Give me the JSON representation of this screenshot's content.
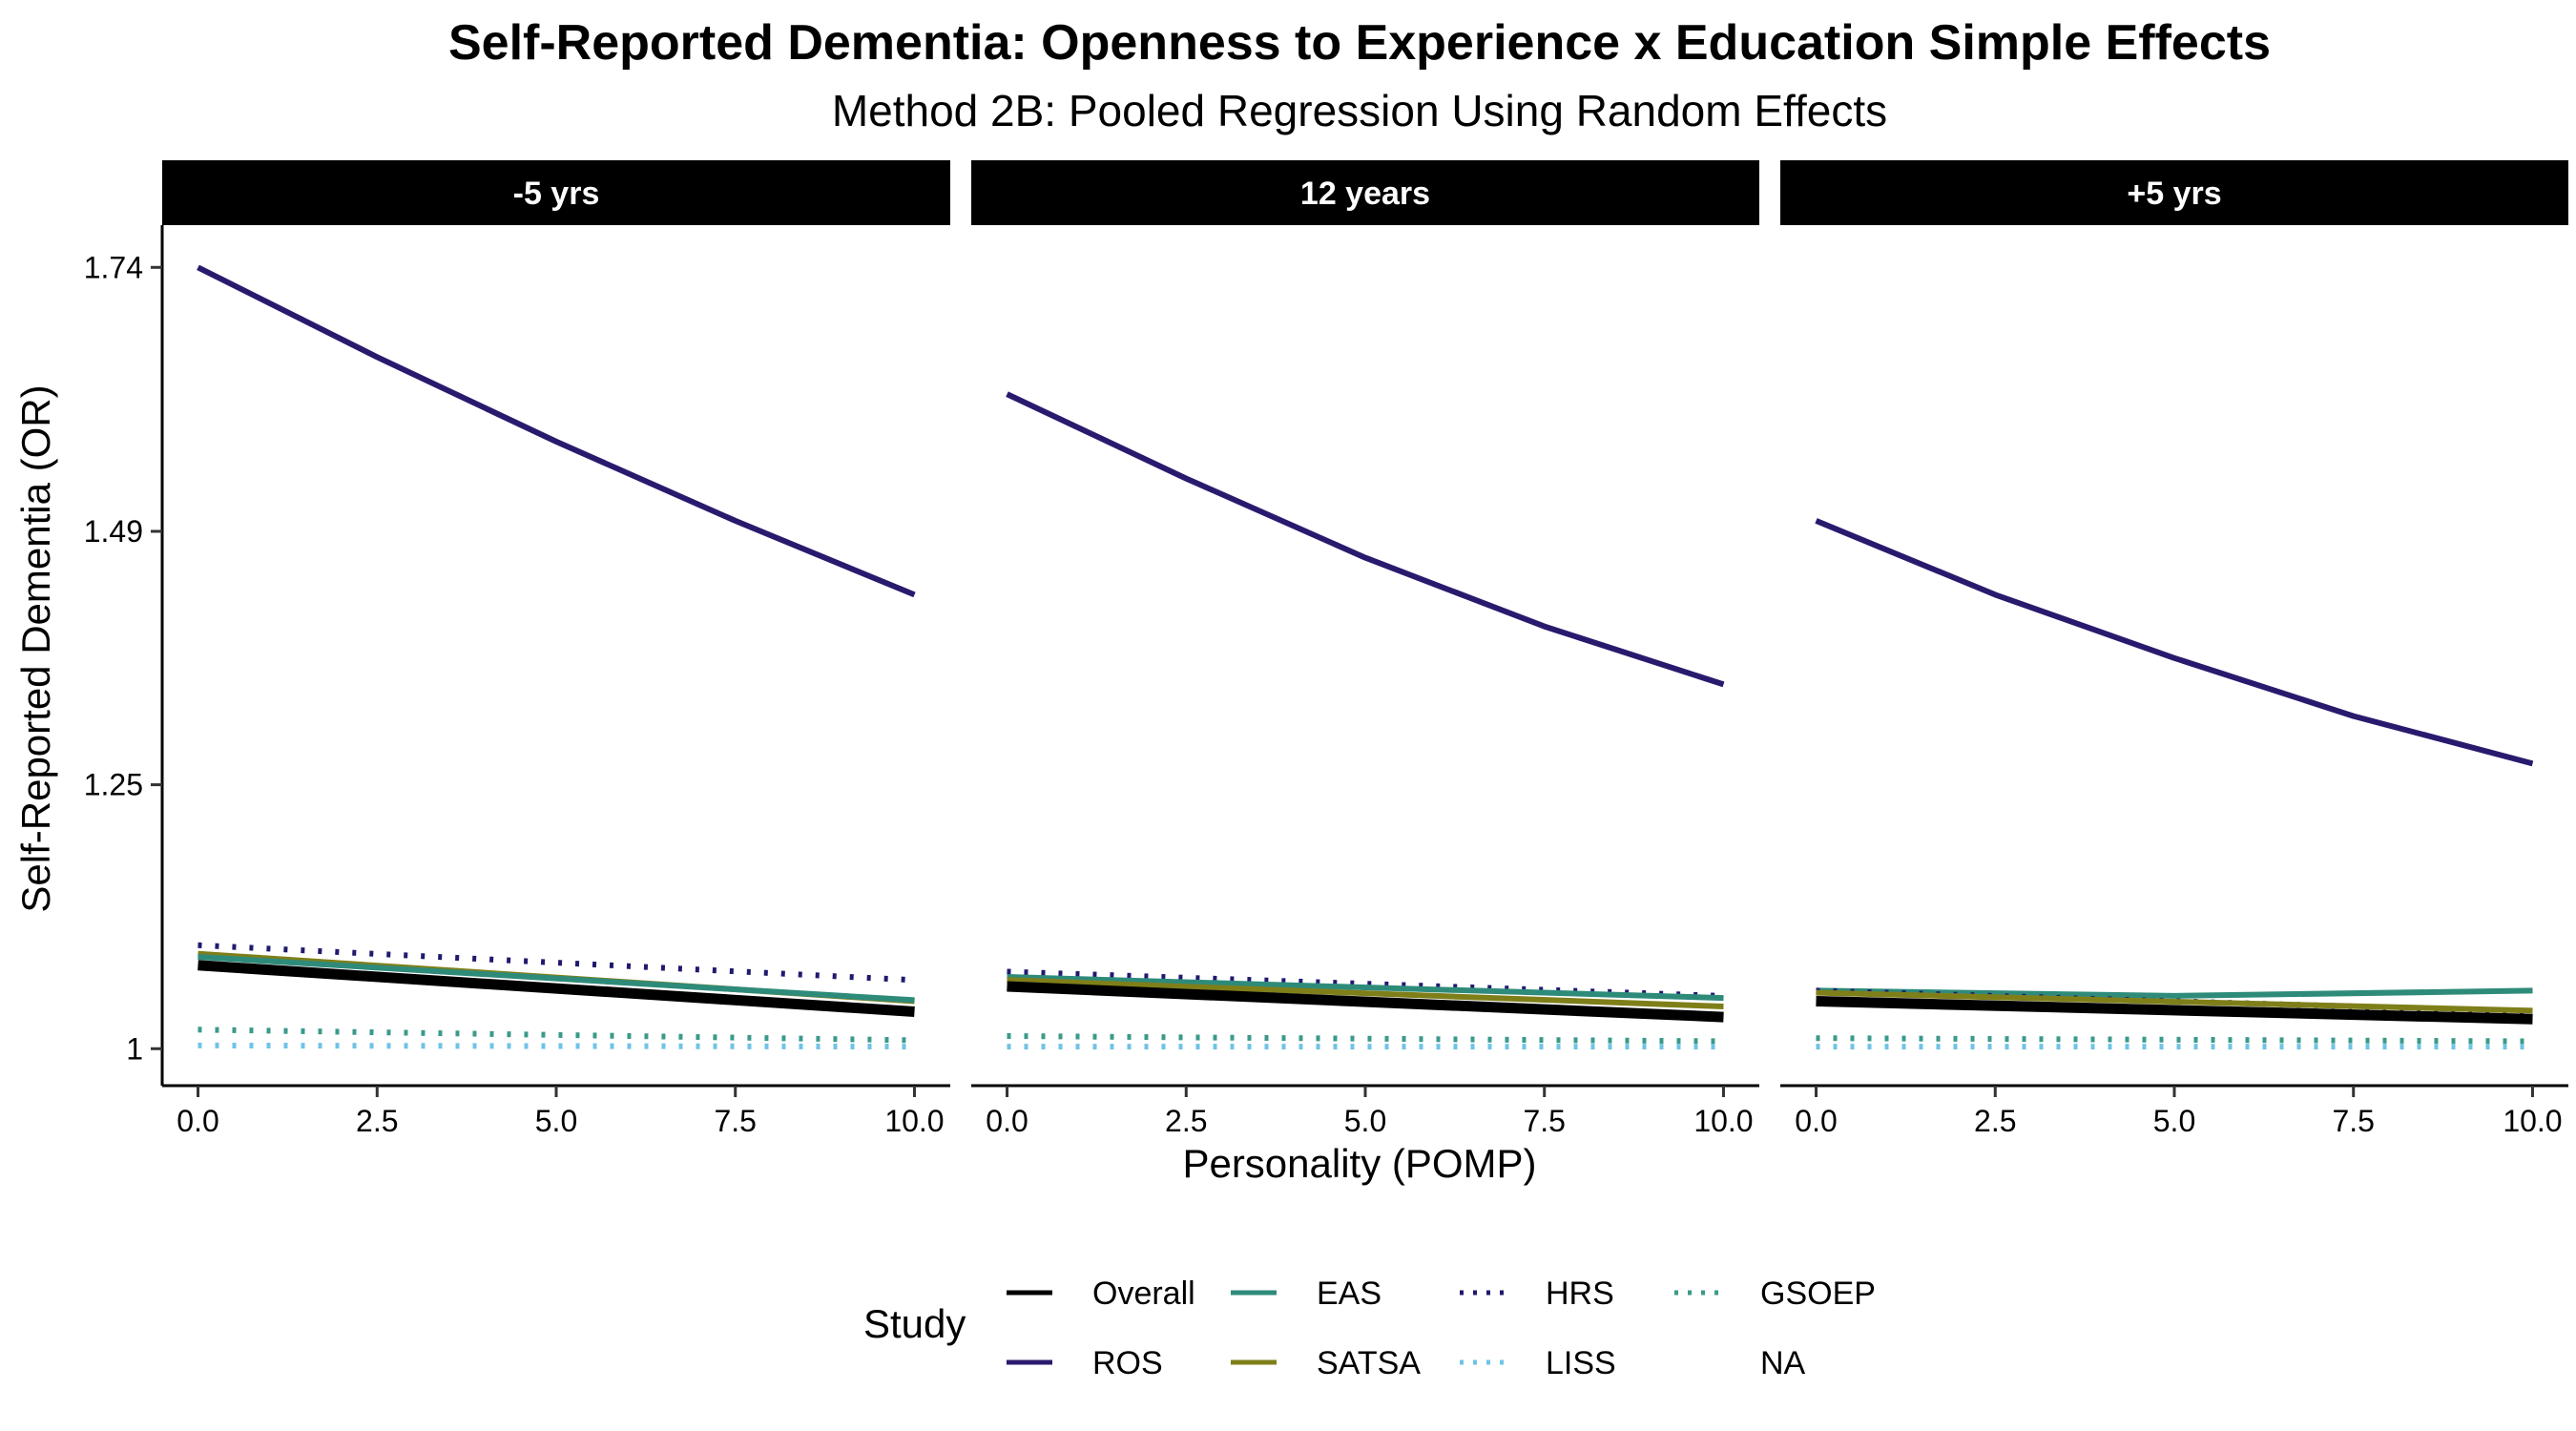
{
  "chart_data": {
    "type": "line",
    "title": "Self-Reported Dementia: Openness to Experience x Education Simple Effects",
    "subtitle": "Method 2B: Pooled Regression Using Random Effects",
    "xlabel": "Personality (POMP)",
    "ylabel": "Self-Reported Dementia (OR)",
    "xlim": [
      -0.5,
      10.5
    ],
    "ylim": [
      0.965,
      1.78
    ],
    "x_ticks": [
      0,
      2.5,
      5,
      7.5,
      10
    ],
    "x_tick_labels": [
      "0.0",
      "2.5",
      "5.0",
      "7.5",
      "10.0"
    ],
    "y_ticks": [
      1,
      1.25,
      1.49,
      1.74
    ],
    "y_tick_labels": [
      "1",
      "1.25",
      "1.49",
      "1.74"
    ],
    "grid": false,
    "legend_position": "bottom",
    "legend_title": "Study",
    "legend": [
      {
        "key": "Overall",
        "label": "Overall",
        "color": "#000000",
        "dash": "solid"
      },
      {
        "key": "ROS",
        "label": "ROS",
        "color": "#2a1a6e",
        "dash": "solid"
      },
      {
        "key": "EAS",
        "label": "EAS",
        "color": "#2e8b7a",
        "dash": "solid"
      },
      {
        "key": "SATSA",
        "label": "SATSA",
        "color": "#7f7f1a",
        "dash": "solid"
      },
      {
        "key": "HRS",
        "label": "HRS",
        "color": "#1f1a6e",
        "dash": "dotted"
      },
      {
        "key": "LISS",
        "label": "LISS",
        "color": "#6ec3e6",
        "dash": "dotted"
      },
      {
        "key": "GSOEP",
        "label": "GSOEP",
        "color": "#3a9a8a",
        "dash": "dotted"
      },
      {
        "key": "NA",
        "label": "NA",
        "color": "#000000",
        "dash": "none"
      }
    ],
    "panels": [
      {
        "label": "-5 yrs",
        "series": [
          {
            "name": "ROS",
            "x": [
              0,
              2.5,
              5,
              7.5,
              10
            ],
            "y": [
              1.74,
              1.655,
              1.575,
              1.5,
              1.43
            ]
          },
          {
            "name": "HRS",
            "x": [
              0,
              10
            ],
            "y": [
              1.098,
              1.065
            ]
          },
          {
            "name": "SATSA",
            "x": [
              0,
              10
            ],
            "y": [
              1.09,
              1.045
            ]
          },
          {
            "name": "EAS",
            "x": [
              0,
              10
            ],
            "y": [
              1.087,
              1.046
            ]
          },
          {
            "name": "Overall",
            "x": [
              0,
              10
            ],
            "y": [
              1.079,
              1.035
            ]
          },
          {
            "name": "GSOEP",
            "x": [
              0,
              10
            ],
            "y": [
              1.018,
              1.008
            ]
          },
          {
            "name": "LISS",
            "x": [
              0,
              10
            ],
            "y": [
              1.003,
              1.002
            ]
          }
        ]
      },
      {
        "label": "12 years",
        "series": [
          {
            "name": "ROS",
            "x": [
              0,
              2.5,
              5,
              7.5,
              10
            ],
            "y": [
              1.62,
              1.54,
              1.465,
              1.4,
              1.345
            ]
          },
          {
            "name": "HRS",
            "x": [
              0,
              10
            ],
            "y": [
              1.073,
              1.05
            ]
          },
          {
            "name": "EAS",
            "x": [
              0,
              10
            ],
            "y": [
              1.068,
              1.048
            ]
          },
          {
            "name": "SATSA",
            "x": [
              0,
              10
            ],
            "y": [
              1.065,
              1.04
            ]
          },
          {
            "name": "Overall",
            "x": [
              0,
              10
            ],
            "y": [
              1.059,
              1.03
            ]
          },
          {
            "name": "GSOEP",
            "x": [
              0,
              10
            ],
            "y": [
              1.012,
              1.007
            ]
          },
          {
            "name": "LISS",
            "x": [
              0,
              10
            ],
            "y": [
              1.002,
              1.002
            ]
          }
        ]
      },
      {
        "label": "+5 yrs",
        "series": [
          {
            "name": "ROS",
            "x": [
              0,
              2.5,
              5,
              7.5,
              10
            ],
            "y": [
              1.5,
              1.43,
              1.37,
              1.315,
              1.27
            ]
          },
          {
            "name": "EAS",
            "x": [
              0,
              5,
              10
            ],
            "y": [
              1.055,
              1.05,
              1.055
            ]
          },
          {
            "name": "HRS",
            "x": [
              0,
              10
            ],
            "y": [
              1.055,
              1.035
            ]
          },
          {
            "name": "SATSA",
            "x": [
              0,
              10
            ],
            "y": [
              1.053,
              1.036
            ]
          },
          {
            "name": "Overall",
            "x": [
              0,
              10
            ],
            "y": [
              1.045,
              1.028
            ]
          },
          {
            "name": "GSOEP",
            "x": [
              0,
              10
            ],
            "y": [
              1.01,
              1.007
            ]
          },
          {
            "name": "LISS",
            "x": [
              0,
              10
            ],
            "y": [
              1.002,
              1.002
            ]
          }
        ]
      }
    ]
  }
}
